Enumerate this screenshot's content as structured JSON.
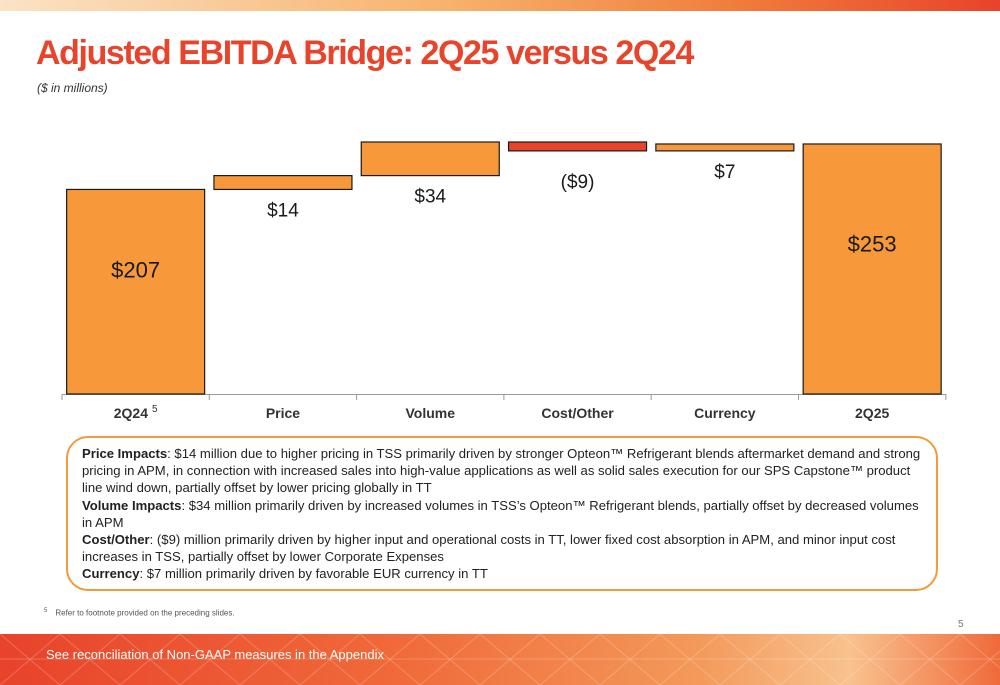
{
  "header": {
    "title": "Adjusted EBITDA Bridge: 2Q25 versus 2Q24",
    "subtitle": "($ in millions)"
  },
  "colors": {
    "title": "#e8432b",
    "bar_orange": "#f7993a",
    "bar_red": "#e8432b",
    "box_border": "#f29a3c"
  },
  "chart_data": {
    "type": "bar",
    "subtype": "waterfall",
    "categories": [
      "2Q24",
      "Price",
      "Volume",
      "Cost/Other",
      "Currency",
      "2Q25"
    ],
    "category_superscripts": [
      "5",
      "",
      "",
      "",
      "",
      ""
    ],
    "bars": [
      {
        "category": "2Q24",
        "kind": "total",
        "start": 0,
        "end": 207,
        "label": "$207",
        "color": "orange"
      },
      {
        "category": "Price",
        "kind": "delta",
        "start": 207,
        "end": 221,
        "label": "$14",
        "color": "orange"
      },
      {
        "category": "Volume",
        "kind": "delta",
        "start": 221,
        "end": 255,
        "label": "$34",
        "color": "orange"
      },
      {
        "category": "Cost/Other",
        "kind": "delta",
        "start": 255,
        "end": 246,
        "label": "($9)",
        "color": "red"
      },
      {
        "category": "Currency",
        "kind": "delta",
        "start": 246,
        "end": 253,
        "label": "$7",
        "color": "orange"
      },
      {
        "category": "2Q25",
        "kind": "total",
        "start": 0,
        "end": 253,
        "label": "$253",
        "color": "orange"
      }
    ],
    "ylim": [
      0,
      255
    ],
    "grid": false,
    "legend": "none"
  },
  "notes": [
    {
      "label": "Price Impacts",
      "text": ": $14 million due to higher pricing in TSS primarily driven by stronger Opteon™ Refrigerant blends aftermarket demand and strong pricing in APM, in connection with increased sales into high-value applications as well as solid sales execution for our SPS Capstone™ product line wind down, partially offset by lower pricing globally in TT"
    },
    {
      "label": "Volume Impacts",
      "text": ": $34 million primarily driven by increased volumes in TSS’s Opteon™ Refrigerant blends, partially offset by decreased volumes in APM"
    },
    {
      "label": "Cost/Other",
      "text": ": ($9) million primarily driven by higher input and operational costs in TT, lower fixed cost absorption in APM, and minor input cost increases in TSS, partially offset by lower Corporate Expenses"
    },
    {
      "label": "Currency",
      "text": ": $7 million primarily driven by favorable EUR currency in TT"
    }
  ],
  "footnote": {
    "marker": "5",
    "text": "Refer to footnote provided on the preceding slides."
  },
  "page_number": "5",
  "footer": {
    "text": "See reconciliation of Non-GAAP measures in the Appendix"
  }
}
